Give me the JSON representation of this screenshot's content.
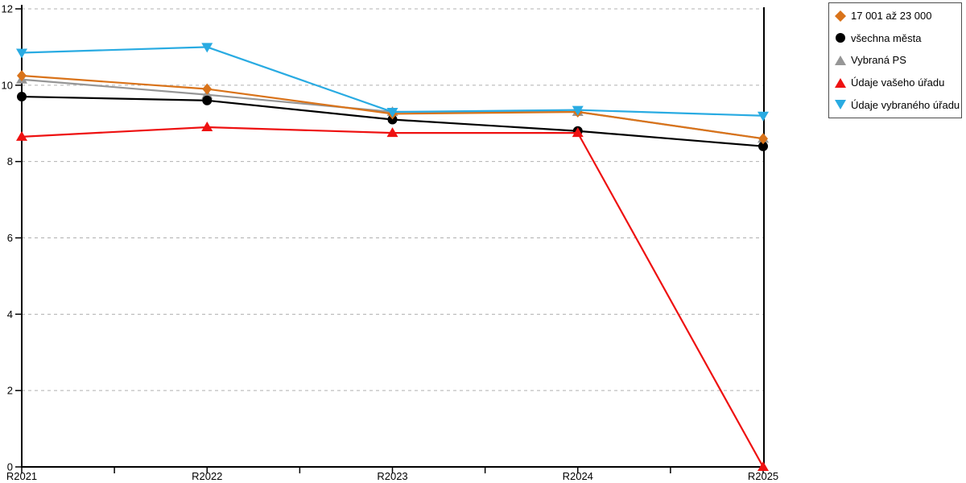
{
  "chart_data": {
    "type": "line",
    "title": "",
    "xlabel": "",
    "ylabel": "",
    "categories": [
      "R2021",
      "R2022",
      "R2023",
      "R2024",
      "R2025"
    ],
    "series": [
      {
        "name": "17 001 až 23 000",
        "marker": "diamond",
        "color": "#D9731A",
        "values": [
          10.25,
          9.9,
          9.25,
          9.3,
          8.6
        ],
        "draw_order": 3
      },
      {
        "name": "všechna města",
        "marker": "circle",
        "color": "#000000",
        "values": [
          9.7,
          9.6,
          9.1,
          8.8,
          8.4
        ],
        "draw_order": 2
      },
      {
        "name": "Vybraná PS",
        "marker": "triangle-up",
        "color": "#969696",
        "values": [
          10.15,
          9.75,
          9.3,
          9.3,
          8.6
        ],
        "draw_order": 1
      },
      {
        "name": "Údaje vašeho úřadu",
        "marker": "triangle-up",
        "color": "#EE1111",
        "values": [
          8.65,
          8.9,
          8.75,
          8.75,
          0
        ],
        "draw_order": 4
      },
      {
        "name": "Údaje vybraného úřadu",
        "marker": "triangle-down",
        "color": "#29ABE2",
        "values": [
          10.85,
          11.0,
          9.3,
          9.35,
          9.2
        ],
        "draw_order": 5
      }
    ],
    "ylim": [
      0,
      12
    ],
    "yticks": [
      0,
      2,
      4,
      6,
      8,
      10,
      12
    ],
    "x_minor_ticks_between_categories": true,
    "grid": "horizontal-dashed",
    "grid_color": "#b0b0b0",
    "axis_color": "#000000",
    "legend_position": "top-right-outside-plot"
  }
}
